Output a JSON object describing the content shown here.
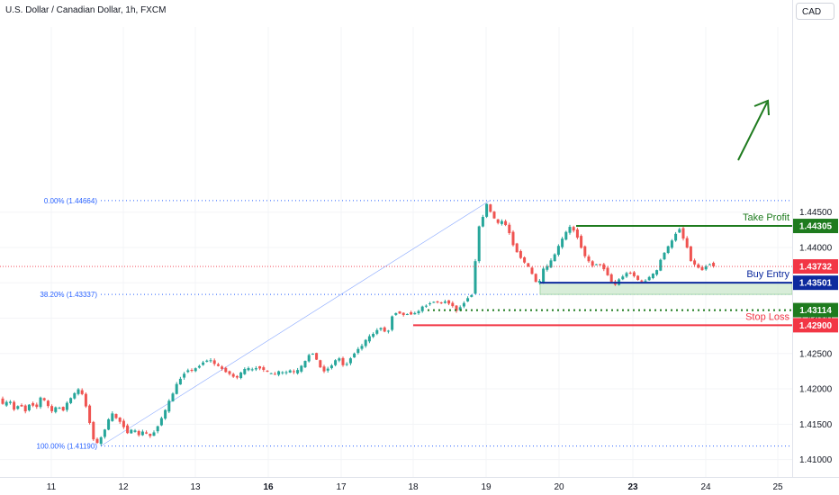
{
  "header": {
    "title": "U.S. Dollar / Canadian Dollar, 1h, FXCM",
    "currency": "CAD"
  },
  "colors": {
    "up": "#26a69a",
    "down": "#ef5350",
    "fib": "#2962ff",
    "take_profit": "#1e7b1e",
    "buy_entry": "#0d2a9e",
    "stop_loss": "#f23645",
    "current": "#f23645",
    "support": "#1e7b1e"
  },
  "chart_data": {
    "type": "candlestick",
    "title": "U.S. Dollar / Canadian Dollar, 1h, FXCM",
    "ylim": [
      1.4088,
      1.4712
    ],
    "y_ticks": [
      "1.41000",
      "1.41500",
      "1.42000",
      "1.42500",
      "1.43000",
      "1.43500",
      "1.44000",
      "1.44500"
    ],
    "x_ticks": [
      {
        "label": "11",
        "bold": false
      },
      {
        "label": "12",
        "bold": false
      },
      {
        "label": "13",
        "bold": false
      },
      {
        "label": "16",
        "bold": true
      },
      {
        "label": "17",
        "bold": false
      },
      {
        "label": "18",
        "bold": false
      },
      {
        "label": "19",
        "bold": false
      },
      {
        "label": "20",
        "bold": false
      },
      {
        "label": "23",
        "bold": true
      },
      {
        "label": "24",
        "bold": false
      },
      {
        "label": "25",
        "bold": false
      }
    ],
    "fib_levels": [
      {
        "label": "0.00% (1.44664)",
        "price": 1.44664
      },
      {
        "label": "38.20% (1.43337)",
        "price": 1.43337
      },
      {
        "label": "100.00% (1.41190)",
        "price": 1.4119
      }
    ],
    "price_levels": [
      {
        "name": "Take Profit",
        "price_label": "1.44305",
        "price": 1.44305,
        "style": "solid",
        "color_key": "take_profit"
      },
      {
        "name": "Buy Entry",
        "price_label": "1.43501",
        "price": 1.43501,
        "style": "solid",
        "color_key": "buy_entry"
      },
      {
        "name": "",
        "price_label": "1.43114",
        "price": 1.43114,
        "style": "dotted",
        "color_key": "support"
      },
      {
        "name": "Stop Loss",
        "price_label": "1.42900",
        "price": 1.429,
        "style": "solid",
        "color_key": "stop_loss"
      }
    ],
    "current_price": {
      "label": "1.43732",
      "price": 1.43732
    },
    "buy_zone": [
      1.43337,
      1.43501
    ],
    "price_path": [
      [
        0,
        1.419
      ],
      [
        6,
        1.4175
      ],
      [
        12,
        1.4185
      ],
      [
        18,
        1.417
      ],
      [
        24,
        1.418
      ],
      [
        30,
        1.4168
      ],
      [
        36,
        1.4182
      ],
      [
        42,
        1.4172
      ],
      [
        48,
        1.419
      ],
      [
        54,
        1.4178
      ],
      [
        60,
        1.4168
      ],
      [
        66,
        1.4175
      ],
      [
        72,
        1.417
      ],
      [
        78,
        1.4183
      ],
      [
        84,
        1.4192
      ],
      [
        90,
        1.42
      ],
      [
        96,
        1.4185
      ],
      [
        102,
        1.415
      ],
      [
        108,
        1.4119
      ],
      [
        114,
        1.413
      ],
      [
        120,
        1.4148
      ],
      [
        126,
        1.4165
      ],
      [
        132,
        1.4158
      ],
      [
        138,
        1.415
      ],
      [
        144,
        1.4138
      ],
      [
        150,
        1.4142
      ],
      [
        156,
        1.4135
      ],
      [
        162,
        1.414
      ],
      [
        168,
        1.4132
      ],
      [
        174,
        1.414
      ],
      [
        180,
        1.4155
      ],
      [
        186,
        1.417
      ],
      [
        192,
        1.4188
      ],
      [
        198,
        1.4205
      ],
      [
        204,
        1.4218
      ],
      [
        210,
        1.4228
      ],
      [
        216,
        1.4225
      ],
      [
        222,
        1.4232
      ],
      [
        228,
        1.4238
      ],
      [
        234,
        1.4242
      ],
      [
        240,
        1.4236
      ],
      [
        246,
        1.423
      ],
      [
        252,
        1.4226
      ],
      [
        258,
        1.422
      ],
      [
        264,
        1.4215
      ],
      [
        270,
        1.4222
      ],
      [
        276,
        1.423
      ],
      [
        282,
        1.4226
      ],
      [
        288,
        1.4232
      ],
      [
        294,
        1.4228
      ],
      [
        300,
        1.4222
      ],
      [
        306,
        1.422
      ],
      [
        312,
        1.4224
      ],
      [
        318,
        1.4222
      ],
      [
        324,
        1.4226
      ],
      [
        330,
        1.4222
      ],
      [
        336,
        1.423
      ],
      [
        342,
        1.424
      ],
      [
        348,
        1.4255
      ],
      [
        354,
        1.424
      ],
      [
        360,
        1.4225
      ],
      [
        366,
        1.4228
      ],
      [
        372,
        1.4236
      ],
      [
        378,
        1.4245
      ],
      [
        384,
        1.4232
      ],
      [
        390,
        1.424
      ],
      [
        396,
        1.4252
      ],
      [
        402,
        1.4258
      ],
      [
        408,
        1.4268
      ],
      [
        414,
        1.4275
      ],
      [
        420,
        1.4282
      ],
      [
        426,
        1.4288
      ],
      [
        432,
        1.4275
      ],
      [
        438,
        1.4305
      ],
      [
        444,
        1.431
      ],
      [
        450,
        1.4304
      ],
      [
        456,
        1.4308
      ],
      [
        462,
        1.4305
      ],
      [
        468,
        1.4312
      ],
      [
        474,
        1.4318
      ],
      [
        480,
        1.4322
      ],
      [
        486,
        1.4324
      ],
      [
        492,
        1.4321
      ],
      [
        498,
        1.4325
      ],
      [
        504,
        1.4318
      ],
      [
        510,
        1.431
      ],
      [
        516,
        1.432
      ],
      [
        522,
        1.433
      ],
      [
        528,
        1.4335
      ],
      [
        530,
        1.438
      ],
      [
        532,
        1.442
      ],
      [
        536,
        1.4435
      ],
      [
        540,
        1.445
      ],
      [
        544,
        1.4466
      ],
      [
        548,
        1.4445
      ],
      [
        552,
        1.444
      ],
      [
        556,
        1.4432
      ],
      [
        560,
        1.4438
      ],
      [
        566,
        1.4428
      ],
      [
        572,
        1.4405
      ],
      [
        578,
        1.439
      ],
      [
        584,
        1.438
      ],
      [
        590,
        1.437
      ],
      [
        596,
        1.4355
      ],
      [
        600,
        1.4345
      ],
      [
        606,
        1.437
      ],
      [
        612,
        1.4375
      ],
      [
        618,
        1.439
      ],
      [
        624,
        1.4405
      ],
      [
        630,
        1.442
      ],
      [
        636,
        1.443
      ],
      [
        642,
        1.442
      ],
      [
        648,
        1.44
      ],
      [
        654,
        1.4382
      ],
      [
        660,
        1.4375
      ],
      [
        666,
        1.4378
      ],
      [
        672,
        1.4372
      ],
      [
        678,
        1.436
      ],
      [
        684,
        1.4345
      ],
      [
        690,
        1.4355
      ],
      [
        696,
        1.4362
      ],
      [
        702,
        1.4365
      ],
      [
        708,
        1.4358
      ],
      [
        714,
        1.435
      ],
      [
        720,
        1.4355
      ],
      [
        726,
        1.436
      ],
      [
        732,
        1.4368
      ],
      [
        738,
        1.439
      ],
      [
        744,
        1.44
      ],
      [
        750,
        1.4412
      ],
      [
        756,
        1.443
      ],
      [
        762,
        1.441
      ],
      [
        766,
        1.4398
      ],
      [
        770,
        1.438
      ],
      [
        774,
        1.4375
      ],
      [
        778,
        1.4372
      ],
      [
        782,
        1.4368
      ],
      [
        786,
        1.4374
      ],
      [
        790,
        1.4378
      ],
      [
        796,
        1.4373
      ]
    ]
  }
}
